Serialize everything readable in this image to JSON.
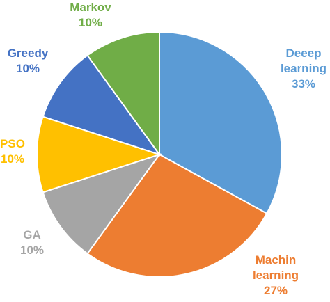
{
  "chart_data": {
    "type": "pie",
    "categories": [
      "Deeep learning",
      "Machin learning",
      "GA",
      "PSO",
      "Greedy",
      "Markov"
    ],
    "values": [
      33,
      27,
      10,
      10,
      10,
      10
    ],
    "value_labels": [
      "33%",
      "27%",
      "10%",
      "10%",
      "10%",
      "10%"
    ],
    "colors": [
      "#5b9bd5",
      "#ed7d31",
      "#a5a5a5",
      "#ffc000",
      "#4472c4",
      "#70ad47"
    ]
  }
}
